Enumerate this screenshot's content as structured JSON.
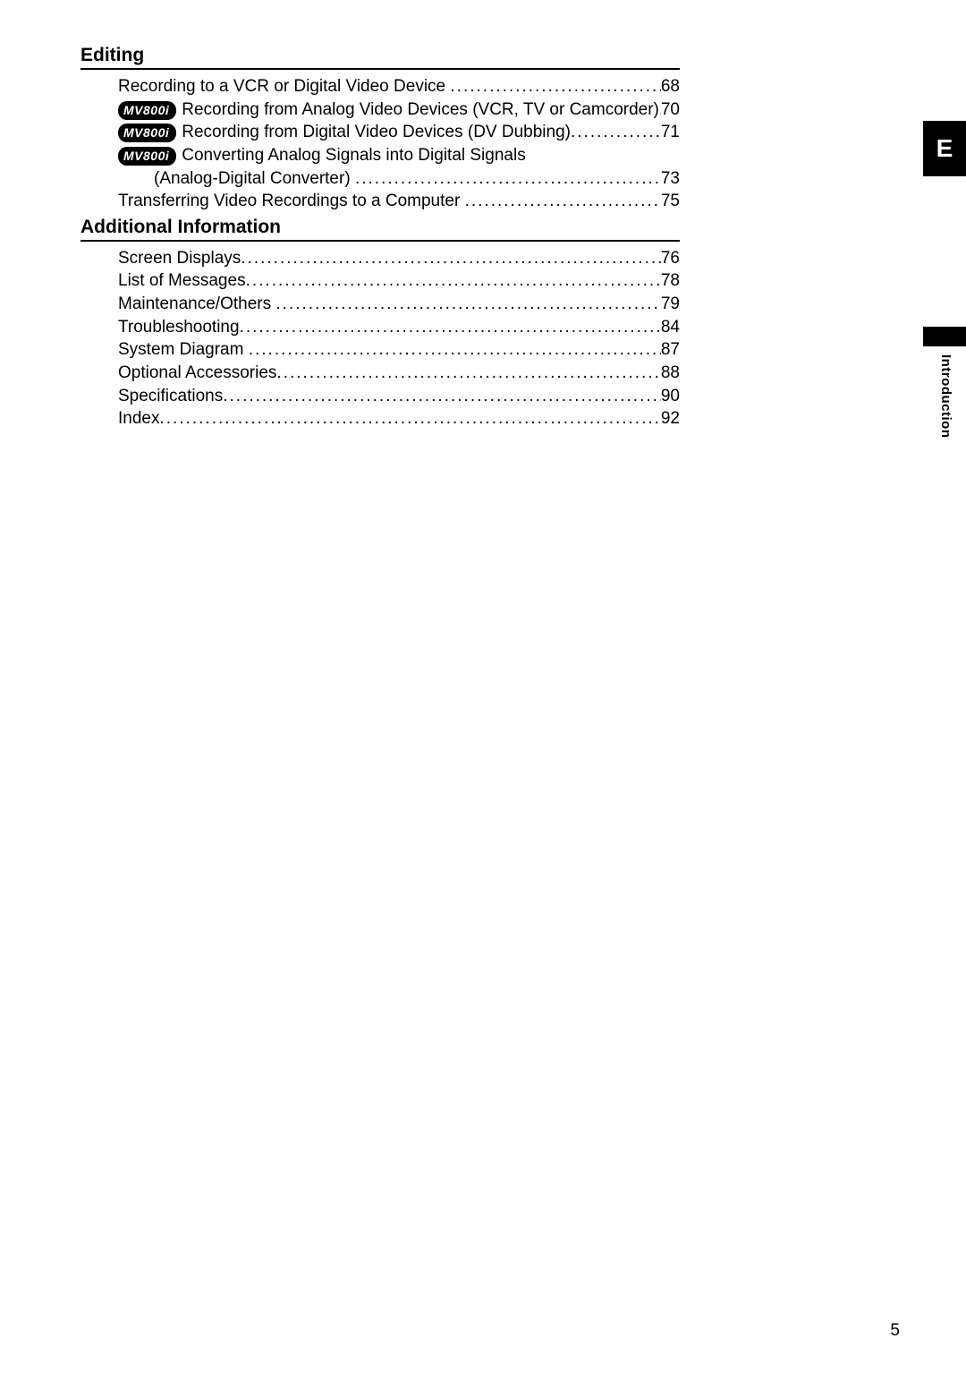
{
  "sections": [
    {
      "title": "Editing",
      "entries": [
        {
          "badge": null,
          "text": "Recording to a VCR or Digital Video Device",
          "page": "68",
          "indent": false,
          "continuation": false
        },
        {
          "badge": "MV800i",
          "text": "Recording from Analog Video Devices (VCR, TV or Camcorder)",
          "page": "70",
          "indent": false,
          "continuation": false
        },
        {
          "badge": "MV800i",
          "text": "Recording from Digital Video Devices (DV Dubbing)",
          "page": "71",
          "indent": false,
          "continuation": false
        },
        {
          "badge": "MV800i",
          "text": "Converting Analog Signals into Digital Signals",
          "page": null,
          "indent": false,
          "continuation": false
        },
        {
          "badge": null,
          "text": "(Analog-Digital Converter)",
          "page": "73",
          "indent": true,
          "continuation": true
        },
        {
          "badge": null,
          "text": "Transferring Video Recordings to a Computer",
          "page": "75",
          "indent": false,
          "continuation": false
        }
      ]
    },
    {
      "title": "Additional Information",
      "entries": [
        {
          "badge": null,
          "text": "Screen Displays",
          "page": "76",
          "indent": false,
          "continuation": false
        },
        {
          "badge": null,
          "text": "List of Messages",
          "page": "78",
          "indent": false,
          "continuation": false
        },
        {
          "badge": null,
          "text": "Maintenance/Others",
          "page": "79",
          "indent": false,
          "continuation": false
        },
        {
          "badge": null,
          "text": "Troubleshooting",
          "page": "84",
          "indent": false,
          "continuation": false
        },
        {
          "badge": null,
          "text": "System Diagram",
          "page": "87",
          "indent": false,
          "continuation": false
        },
        {
          "badge": null,
          "text": "Optional Accessories",
          "page": "88",
          "indent": false,
          "continuation": false
        },
        {
          "badge": null,
          "text": "Specifications",
          "page": "90",
          "indent": false,
          "continuation": false
        },
        {
          "badge": null,
          "text": "Index",
          "page": "92",
          "indent": false,
          "continuation": false
        }
      ]
    }
  ],
  "sideTab": "E",
  "sideLabel": "Introduction",
  "pageNumber": "5",
  "badgeLabel": "MV800i"
}
